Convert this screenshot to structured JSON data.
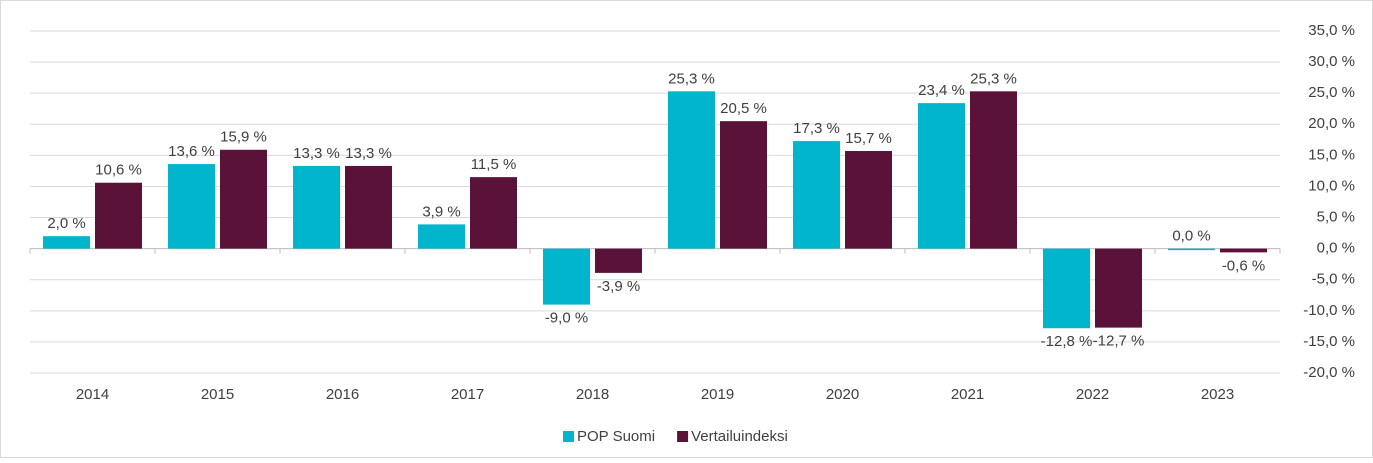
{
  "chart_data": {
    "type": "bar",
    "categories": [
      "2014",
      "2015",
      "2016",
      "2017",
      "2018",
      "2019",
      "2020",
      "2021",
      "2022",
      "2023"
    ],
    "series": [
      {
        "name": "POP Suomi",
        "color": "#00b5cc",
        "values": [
          2.0,
          13.6,
          13.3,
          3.9,
          -9.0,
          25.3,
          17.3,
          23.4,
          -12.8,
          0.0
        ],
        "value_labels": [
          "2,0 %",
          "13,6 %",
          "13,3 %",
          "3,9 %",
          "-9,0 %",
          "25,3 %",
          "17,3 %",
          "23,4 %",
          "-12,8 %",
          "0,0 %"
        ]
      },
      {
        "name": "Vertailuindeksi",
        "color": "#5a1238",
        "values": [
          10.6,
          15.9,
          13.3,
          11.5,
          -3.9,
          20.5,
          15.7,
          25.3,
          -12.7,
          -0.6
        ],
        "value_labels": [
          "10,6 %",
          "15,9 %",
          "13,3 %",
          "11,5 %",
          "-3,9 %",
          "20,5 %",
          "15,7 %",
          "25,3 %",
          "-12,7 %",
          "-0,6 %"
        ]
      }
    ],
    "ylim": [
      -20,
      35
    ],
    "yticks": [
      {
        "value": -20,
        "label": "-20,0 %"
      },
      {
        "value": -15,
        "label": "-15,0 %"
      },
      {
        "value": -10,
        "label": "-10,0 %"
      },
      {
        "value": -5,
        "label": "-5,0 %"
      },
      {
        "value": 0,
        "label": "0,0 %"
      },
      {
        "value": 5,
        "label": "5,0 %"
      },
      {
        "value": 10,
        "label": "10,0 %"
      },
      {
        "value": 15,
        "label": "15,0 %"
      },
      {
        "value": 20,
        "label": "20,0 %"
      },
      {
        "value": 25,
        "label": "25,0 %"
      },
      {
        "value": 30,
        "label": "30,0 %"
      },
      {
        "value": 35,
        "label": "35,0 %"
      }
    ],
    "grid": true,
    "legend": "bottom"
  }
}
